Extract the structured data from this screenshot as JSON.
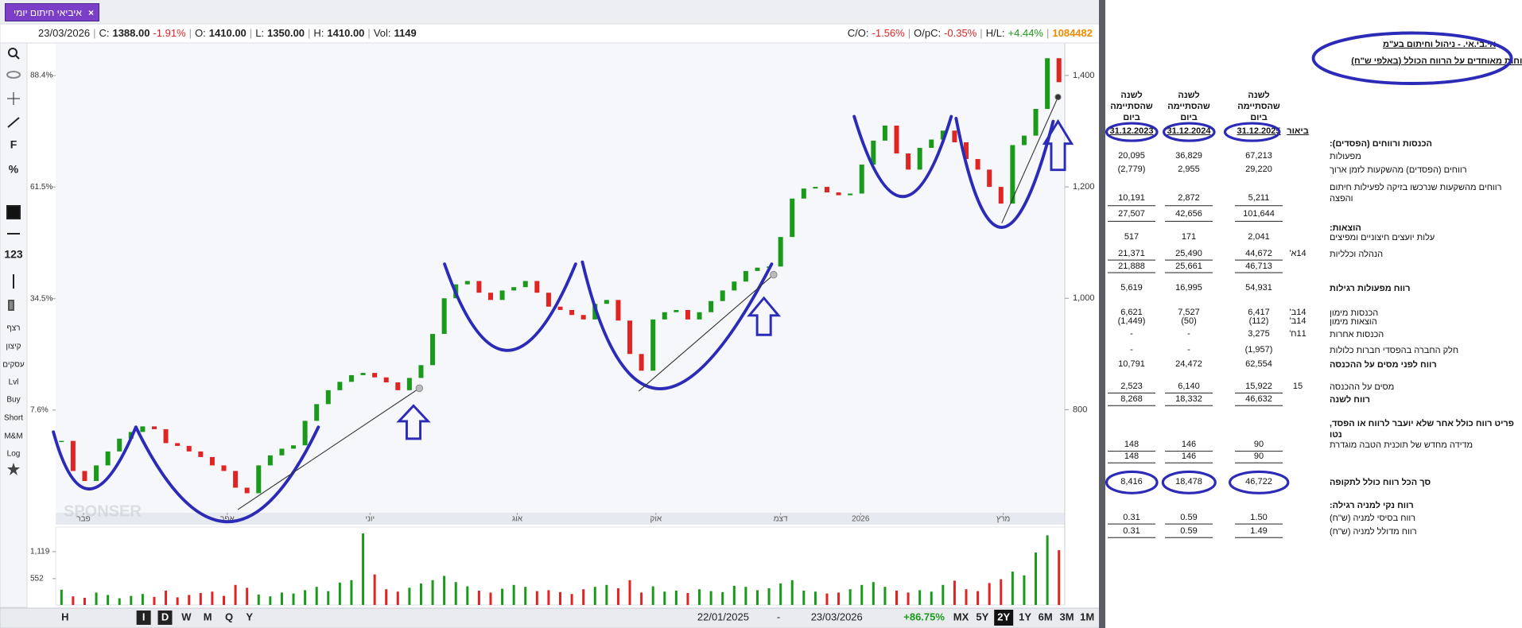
{
  "tab": {
    "title": "איביאי חיתום יומי",
    "close": "×"
  },
  "quote": {
    "date": "23/03/2026",
    "items": [
      {
        "label": "C:",
        "value": "1388.00",
        "change": "-1.91%"
      },
      {
        "label": "O:",
        "value": "1410.00"
      },
      {
        "label": "L:",
        "value": "1350.00"
      },
      {
        "label": "H:",
        "value": "1410.00"
      },
      {
        "label": "Vol:",
        "value": "1149"
      }
    ],
    "stats": [
      {
        "label": "C/O:",
        "value": "-1.56%"
      },
      {
        "label": "O/pC:",
        "value": "-0.35%"
      },
      {
        "label": "H/L:",
        "value": "+4.44%"
      }
    ],
    "total": "1084482"
  },
  "toolbar": [
    "F",
    "%",
    "123",
    "רצף",
    "קיצון",
    "עסקים",
    "Lvl",
    "Buy",
    "Short",
    "M&M",
    "Log"
  ],
  "chart_data": {
    "type": "candlestick",
    "watermark": "SPONSER",
    "series": [
      {
        "values": [
          744,
          690,
          672,
          700,
          725,
          748,
          760,
          770,
          765,
          740,
          735,
          725,
          715,
          700,
          690,
          660,
          650,
          700,
          718,
          730,
          736,
          780,
          810,
          835,
          850,
          862,
          866,
          858,
          849,
          835,
          857,
          880,
          936,
          1000,
          1025,
          1031,
          1010,
          997,
          1014,
          1020,
          1031,
          1010,
          985,
          979,
          970,
          962,
          990,
          997,
          960,
          900,
          870,
          962,
          975,
          979,
          962,
          975,
          995,
          1014,
          1030,
          1049,
          1055,
          1057,
          1110,
          1179,
          1197,
          1200,
          1190,
          1185,
          1188,
          1240,
          1283,
          1310,
          1260,
          1231,
          1270,
          1285,
          1301,
          1280,
          1250,
          1231,
          1200,
          1170,
          1275,
          1292,
          1340,
          1431,
          1388
        ]
      }
    ],
    "up_color": "#1a9a1a",
    "down_color": "#e02424",
    "xlim": [
      -0.5,
      86.5
    ],
    "xticks": [
      {
        "value": 1.9,
        "label": "פבר"
      },
      {
        "value": 14.3,
        "label": "אפר"
      },
      {
        "value": 26.6,
        "label": "יוני"
      },
      {
        "value": 39.3,
        "label": "אוג"
      },
      {
        "value": 51.25,
        "label": "אוק"
      },
      {
        "value": 62,
        "label": "דצמ"
      },
      {
        "value": 68.9,
        "label": "2026"
      },
      {
        "value": 81.2,
        "label": "מרץ"
      }
    ],
    "ylim": [
      615,
      1457
    ],
    "yticks": [
      {
        "value": 800,
        "label": "800"
      },
      {
        "value": 1000,
        "label": "1,000"
      },
      {
        "value": 1200,
        "label": "1,200"
      },
      {
        "value": 1400,
        "label": "1,400"
      }
    ],
    "y2lim": [
      -17.2,
      96.1
    ],
    "y2ticks": [
      {
        "value": 7.6,
        "label": "7.6%"
      },
      {
        "value": 34.5,
        "label": "34.5%"
      },
      {
        "value": 61.5,
        "label": "61.5%"
      },
      {
        "value": 88.4,
        "label": "88.4%"
      }
    ],
    "volume": {
      "values": [
        320,
        180,
        150,
        260,
        210,
        140,
        190,
        230,
        170,
        300,
        160,
        210,
        250,
        280,
        190,
        420,
        360,
        220,
        180,
        260,
        240,
        310,
        380,
        290,
        470,
        520,
        1500,
        640,
        330,
        280,
        360,
        450,
        520,
        610,
        480,
        390,
        300,
        260,
        340,
        420,
        380,
        290,
        310,
        270,
        230,
        330,
        380,
        420,
        350,
        520,
        260,
        390,
        280,
        300,
        250,
        330,
        290,
        270,
        400,
        380,
        310,
        350,
        450,
        520,
        300,
        280,
        240,
        260,
        330,
        420,
        480,
        380,
        300,
        260,
        310,
        280,
        420,
        510,
        330,
        290,
        460,
        540,
        700,
        620,
        1100,
        1460,
        1149
      ],
      "ylim": [
        0,
        1634
      ],
      "yticks": [
        552,
        {
          "value": 1119,
          "label": "1,119"
        }
      ]
    }
  },
  "bottom_bar": {
    "intervals": [
      "H",
      "I",
      "D",
      "W",
      "M",
      "Q",
      "Y"
    ],
    "highlighted": [
      "I",
      "D"
    ],
    "from": "22/01/2025",
    "separator": "-",
    "to": "23/03/2026",
    "change": "+86.75%",
    "ranges": [
      "MX",
      "5Y",
      "2Y",
      "1Y",
      "6M",
      "3M",
      "1M"
    ],
    "active_range": "2Y"
  },
  "statement": {
    "company": "אי.בי.אי. - ניהול וחיתום בע\"מ",
    "title": "דוחות מאוחדים על הרווח הכולל (באלפי ש\"ח)",
    "note_header": "ביאור",
    "column_headers": [
      "לשנה שהסתיימה ביום",
      "לשנה שהסתיימה ביום",
      "לשנה שהסתיימה ביום"
    ],
    "dates": [
      "31.12.2025",
      "31.12.2024",
      "31.12.2023"
    ],
    "rows": [
      {
        "label": "הכנסות ורווחים (הפסדים):",
        "bold": true
      },
      {
        "label": "מפעולות",
        "values": [
          "67,213",
          "36,829",
          "20,095"
        ]
      },
      {
        "label": "רווחים (הפסדים) מהשקעות לזמן ארוך",
        "values": [
          "29,220",
          "2,955",
          "(2,779)"
        ]
      },
      {
        "label": "רווחים מהשקעות שנרכשו בזיקה לפעילות חיתום והפצה",
        "values": [
          "5,211",
          "2,872",
          "10,191"
        ]
      },
      {
        "values": [
          "101,644",
          "42,656",
          "27,507"
        ]
      },
      {
        "label": "הוצאות:",
        "bold": true
      },
      {
        "label": "עלות יועצים חיצוניים ומפיצים",
        "values": [
          "2,041",
          "171",
          "517"
        ]
      },
      {
        "label": "הנהלה וכלליות",
        "note": "14א'",
        "values": [
          "44,672",
          "25,490",
          "21,371"
        ]
      },
      {
        "values": [
          "46,713",
          "25,661",
          "21,888"
        ]
      },
      {
        "label": "רווח מפעולות רגילות",
        "bold": true,
        "values": [
          "54,931",
          "16,995",
          "5,619"
        ]
      },
      {
        "label": "הכנסות מימון",
        "note": "14ב'",
        "values": [
          "6,417",
          "7,527",
          "6,621"
        ]
      },
      {
        "label": "הוצאות מימון",
        "note": "14ב'",
        "values": [
          "(112)",
          "(50)",
          "(1,449)"
        ]
      },
      {
        "label": "הכנסות אחרות",
        "note": "11ח'",
        "values": [
          "3,275",
          "-",
          "-"
        ]
      },
      {
        "label": "חלק החברה בהפסדי חברות כלולות",
        "values": [
          "(1,957)",
          "-",
          "-"
        ]
      },
      {
        "label": "רווח לפני מסים על ההכנסה",
        "bold": true,
        "values": [
          "62,554",
          "24,472",
          "10,791"
        ]
      },
      {
        "label": "מסים על ההכנסה",
        "note": "15",
        "values": [
          "15,922",
          "6,140",
          "2,523"
        ]
      },
      {
        "label": "רווח לשנה",
        "bold": true,
        "values": [
          "46,632",
          "18,332",
          "8,268"
        ]
      },
      {
        "label": "פריט רווח כולל אחר שלא יועבר לרווח או הפסד, נטו",
        "bold": true
      },
      {
        "label": "מדידה מחדש של תוכנית הטבה מוגדרת",
        "values": [
          "90",
          "146",
          "148"
        ]
      },
      {
        "values": [
          "90",
          "146",
          "148"
        ]
      },
      {
        "label": "סך הכל רווח כולל לתקופה",
        "bold": true,
        "values": [
          "46,722",
          "18,478",
          "8,416"
        ]
      },
      {
        "label": "רווח נקי למניה רגילה:",
        "bold": true
      },
      {
        "label": "רווח בסיסי למניה (ש\"ח)",
        "values": [
          "1.50",
          "0.59",
          "0.31"
        ]
      },
      {
        "label": "רווח מדולל למניה (ש\"ח)",
        "values": [
          "1.49",
          "0.59",
          "0.31"
        ]
      }
    ]
  }
}
